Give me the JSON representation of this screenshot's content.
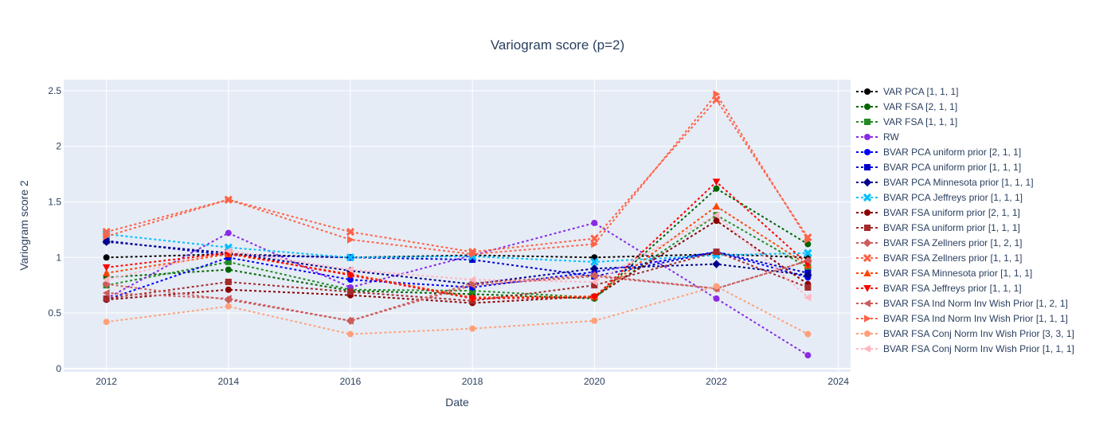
{
  "chart_data": {
    "type": "line",
    "title": "Variogram score (p=2)",
    "xlabel": "Date",
    "ylabel": "Variogram score 2",
    "xlim": [
      2011.3,
      2024.2
    ],
    "ylim": [
      -0.03,
      2.6
    ],
    "x_ticks": [
      2012,
      2014,
      2016,
      2018,
      2020,
      2022,
      2024
    ],
    "x_tick_labels": [
      "2012",
      "2014",
      "2016",
      "2018",
      "2020",
      "2022",
      "2024"
    ],
    "y_ticks": [
      0,
      0.5,
      1,
      1.5,
      2,
      2.5
    ],
    "y_tick_labels": [
      "0",
      "0.5",
      "1",
      "1.5",
      "2",
      "2.5"
    ],
    "grid": true,
    "legend_position": "right",
    "x": [
      2012,
      2014,
      2016,
      2018,
      2020,
      2022,
      2023.5
    ],
    "series": [
      {
        "name": "VAR PCA [1, 1, 1]",
        "color": "#000000",
        "marker": "circle",
        "values": [
          1.0,
          1.03,
          1.0,
          1.02,
          1.0,
          1.03,
          1.0
        ]
      },
      {
        "name": "VAR FSA [2, 1, 1]",
        "color": "#006400",
        "marker": "circle",
        "values": [
          0.82,
          0.89,
          0.7,
          0.67,
          0.63,
          1.62,
          1.12
        ]
      },
      {
        "name": "VAR FSA [1, 1, 1]",
        "color": "#228B22",
        "marker": "square",
        "values": [
          0.75,
          0.96,
          0.71,
          0.7,
          0.64,
          1.38,
          0.91
        ]
      },
      {
        "name": "RW",
        "color": "#8A2BE2",
        "marker": "circle",
        "values": [
          0.63,
          1.22,
          0.73,
          1.02,
          1.31,
          0.63,
          0.12
        ]
      },
      {
        "name": "BVAR PCA uniform prior [2, 1, 1]",
        "color": "#0000FF",
        "marker": "circle",
        "values": [
          0.62,
          1.0,
          0.8,
          0.73,
          0.87,
          1.05,
          0.82
        ]
      },
      {
        "name": "BVAR PCA uniform prior [1, 1, 1]",
        "color": "#0000CD",
        "marker": "square",
        "values": [
          1.15,
          1.02,
          1.0,
          0.98,
          0.83,
          1.05,
          0.86
        ]
      },
      {
        "name": "BVAR PCA Minnesota prior [1, 1, 1]",
        "color": "#00008B",
        "marker": "diamond",
        "values": [
          1.14,
          1.04,
          0.88,
          0.76,
          0.9,
          0.94,
          0.84
        ]
      },
      {
        "name": "BVAR PCA Jeffreys prior [1, 1, 1]",
        "color": "#00BFFF",
        "marker": "x",
        "values": [
          1.21,
          1.09,
          1.0,
          1.01,
          0.96,
          1.02,
          1.04
        ]
      },
      {
        "name": "BVAR FSA uniform prior [2, 1, 1]",
        "color": "#8B0000",
        "marker": "circle",
        "values": [
          0.62,
          0.71,
          0.66,
          0.59,
          0.65,
          1.33,
          0.76
        ]
      },
      {
        "name": "BVAR FSA uniform prior [1, 1, 1]",
        "color": "#A52A2A",
        "marker": "square",
        "values": [
          0.63,
          0.78,
          0.69,
          0.61,
          0.75,
          1.05,
          0.73
        ]
      },
      {
        "name": "BVAR FSA Zellners prior [1, 2, 1]",
        "color": "#CD5C5C",
        "marker": "diamond",
        "values": [
          0.76,
          0.62,
          0.43,
          0.77,
          0.84,
          0.72,
          0.97
        ]
      },
      {
        "name": "BVAR FSA Zellners prior [1, 1, 1]",
        "color": "#FF6347",
        "marker": "x",
        "values": [
          1.23,
          1.52,
          1.23,
          1.05,
          1.17,
          2.42,
          1.18
        ]
      },
      {
        "name": "BVAR FSA Minnesota prior [1, 1, 1]",
        "color": "#FF4500",
        "marker": "triangle-up",
        "values": [
          0.86,
          1.03,
          0.85,
          0.64,
          0.65,
          1.46,
          0.93
        ]
      },
      {
        "name": "BVAR FSA Jeffreys prior [1, 1, 1]",
        "color": "#FF0000",
        "marker": "triangle-down",
        "values": [
          0.91,
          1.04,
          0.84,
          0.63,
          0.64,
          1.68,
          0.94
        ]
      },
      {
        "name": "BVAR FSA Ind Norm Inv Wish Prior [1, 2, 1]",
        "color": "#CD5C5C",
        "marker": "triangle-left",
        "values": [
          0.68,
          0.63,
          0.43,
          0.75,
          0.83,
          0.72,
          0.97
        ]
      },
      {
        "name": "BVAR FSA Ind Norm Inv Wish Prior [1, 1, 1]",
        "color": "#FF6347",
        "marker": "triangle-right",
        "values": [
          1.19,
          1.52,
          1.16,
          1.03,
          1.12,
          2.47,
          1.16
        ]
      },
      {
        "name": "BVAR FSA Conj Norm Inv Wish Prior [3, 3, 1]",
        "color": "#FFA07A",
        "marker": "circle",
        "values": [
          0.42,
          0.56,
          0.31,
          0.36,
          0.43,
          0.74,
          0.31
        ]
      },
      {
        "name": "BVAR FSA Conj Norm Inv Wish Prior [1, 1, 1]",
        "color": "#FFB6C1",
        "marker": "triangle-left",
        "values": [
          0.8,
          1.06,
          0.89,
          0.8,
          0.78,
          1.38,
          0.64
        ]
      }
    ]
  }
}
